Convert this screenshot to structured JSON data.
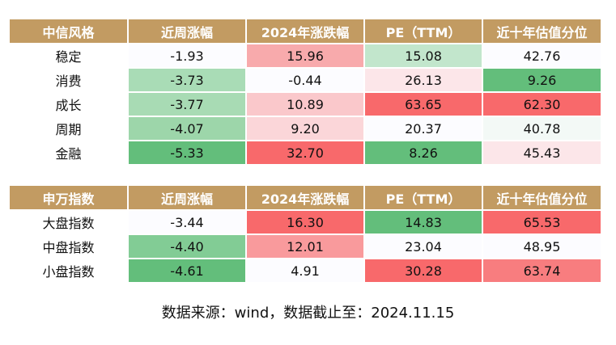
{
  "tables": [
    {
      "headers": [
        "中信风格",
        "近周涨幅",
        "2024年涨跌幅",
        "PE（TTM）",
        "近十年估值分位"
      ],
      "rows": [
        {
          "name": "稳定",
          "cells": [
            {
              "value": "-1.93",
              "color": "#fcfcff"
            },
            {
              "value": "15.96",
              "color": "#f8aaac"
            },
            {
              "value": "15.08",
              "color": "#c2e6cc"
            },
            {
              "value": "42.76",
              "color": "#fcfcff"
            }
          ]
        },
        {
          "name": "消费",
          "cells": [
            {
              "value": "-3.73",
              "color": "#a9dcb6"
            },
            {
              "value": "-0.44",
              "color": "#fcfcff"
            },
            {
              "value": "26.13",
              "color": "#fce6e9"
            },
            {
              "value": "9.26",
              "color": "#63be7b"
            }
          ]
        },
        {
          "name": "成长",
          "cells": [
            {
              "value": "-3.77",
              "color": "#a8dbb4"
            },
            {
              "value": "10.89",
              "color": "#fac8cb"
            },
            {
              "value": "63.65",
              "color": "#f8696b"
            },
            {
              "value": "62.30",
              "color": "#f8696b"
            }
          ]
        },
        {
          "name": "周期",
          "cells": [
            {
              "value": "-4.07",
              "color": "#9dd6aa"
            },
            {
              "value": "9.20",
              "color": "#fbd6d9"
            },
            {
              "value": "20.37",
              "color": "#fcfcff"
            },
            {
              "value": "40.78",
              "color": "#f3f9f6"
            }
          ]
        },
        {
          "name": "金融",
          "cells": [
            {
              "value": "-5.33",
              "color": "#63be7b"
            },
            {
              "value": "32.70",
              "color": "#f8696b"
            },
            {
              "value": "8.26",
              "color": "#63be7b"
            },
            {
              "value": "45.43",
              "color": "#fce6e9"
            }
          ]
        }
      ]
    },
    {
      "headers": [
        "申万指数",
        "近周涨幅",
        "2024年涨跌幅",
        "PE（TTM）",
        "近十年估值分位"
      ],
      "rows": [
        {
          "name": "大盘指数",
          "cells": [
            {
              "value": "-3.44",
              "color": "#fcfcff"
            },
            {
              "value": "16.30",
              "color": "#f8696b"
            },
            {
              "value": "14.83",
              "color": "#63be7b"
            },
            {
              "value": "65.53",
              "color": "#f8696b"
            }
          ]
        },
        {
          "name": "中盘指数",
          "cells": [
            {
              "value": "-4.40",
              "color": "#82cc95"
            },
            {
              "value": "12.01",
              "color": "#f99a9c"
            },
            {
              "value": "23.04",
              "color": "#fcfcff"
            },
            {
              "value": "48.95",
              "color": "#fcfcff"
            }
          ]
        },
        {
          "name": "小盘指数",
          "cells": [
            {
              "value": "-4.61",
              "color": "#63be7b"
            },
            {
              "value": "4.91",
              "color": "#fcfcff"
            },
            {
              "value": "30.28",
              "color": "#f8696b"
            },
            {
              "value": "63.74",
              "color": "#f87d7f"
            }
          ]
        }
      ]
    }
  ],
  "source": "数据来源：wind，数据截止至：2024.11.15"
}
